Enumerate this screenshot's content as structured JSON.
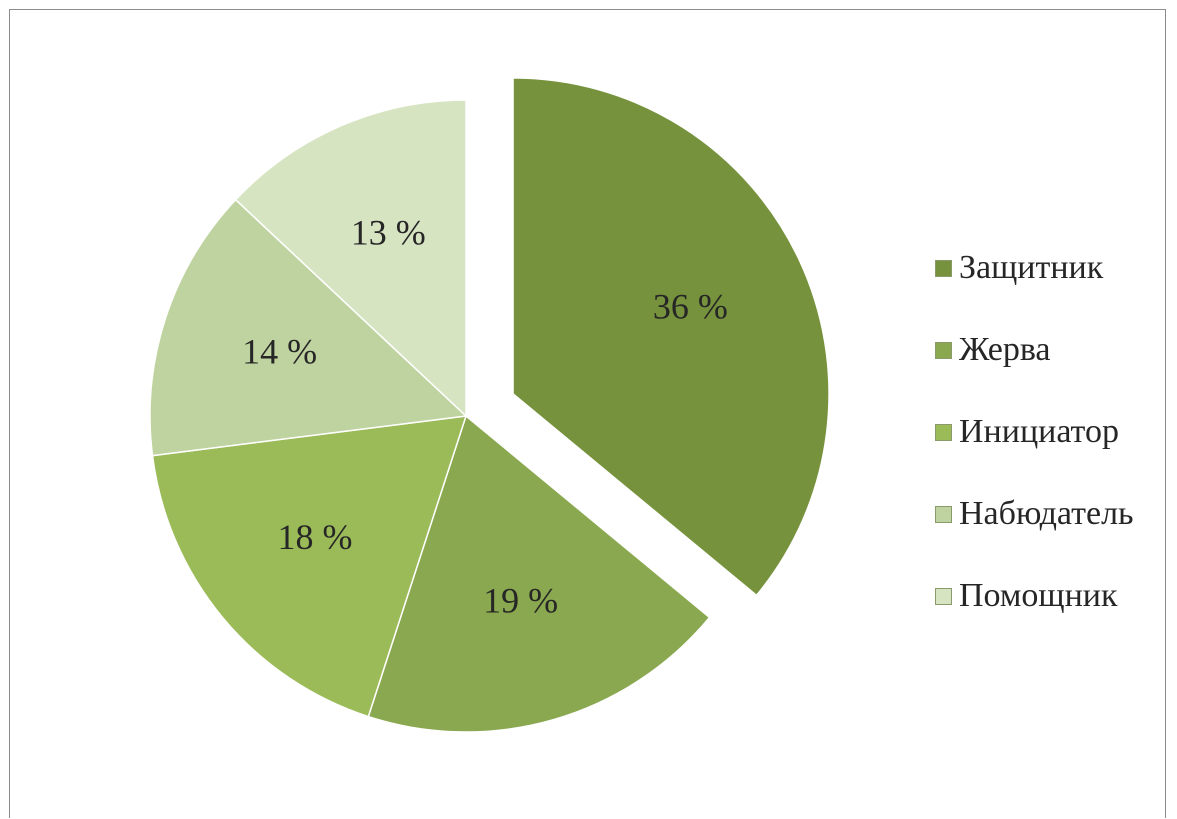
{
  "chart_data": {
    "type": "pie",
    "title": "",
    "slices": [
      {
        "name": "Защитник",
        "value": 36,
        "label": "36 %",
        "color": "#76923c",
        "exploded": true
      },
      {
        "name": "Жерва",
        "value": 19,
        "label": "19 %",
        "color": "#8aa84f"
      },
      {
        "name": "Инициатор",
        "value": 18,
        "label": "18 %",
        "color": "#9bbb59"
      },
      {
        "name": "Набюдатель",
        "value": 14,
        "label": "14 %",
        "color": "#bfd3a0"
      },
      {
        "name": "Помощник",
        "value": 13,
        "label": "13 %",
        "color": "#d7e4c2"
      }
    ],
    "legend_position": "right"
  }
}
